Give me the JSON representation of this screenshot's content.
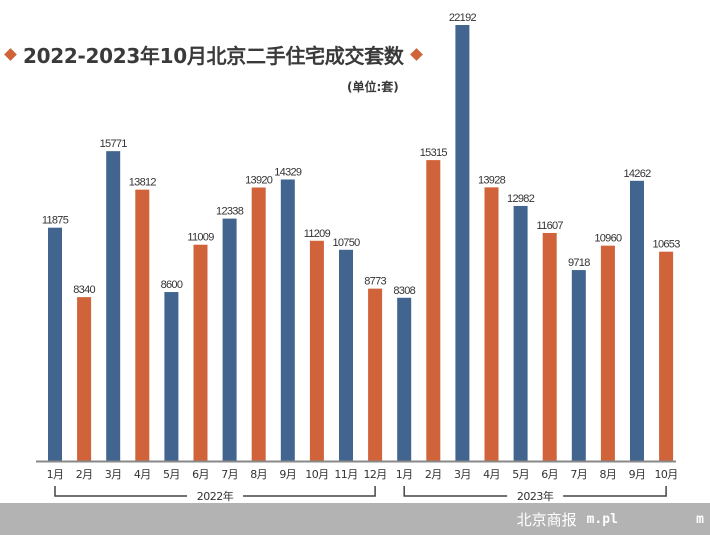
{
  "chart_data": {
    "type": "bar",
    "title": "2022-2023年10月北京二手住宅成交套数",
    "unit": "(单位:套)",
    "categories": [
      "1月",
      "2月",
      "3月",
      "4月",
      "5月",
      "6月",
      "7月",
      "8月",
      "9月",
      "10月",
      "11月",
      "12月",
      "1月",
      "2月",
      "3月",
      "4月",
      "5月",
      "6月",
      "7月",
      "8月",
      "9月",
      "10月"
    ],
    "groups": [
      {
        "label": "2022年",
        "start": 0,
        "end": 11
      },
      {
        "label": "2023年",
        "start": 12,
        "end": 21
      }
    ],
    "values": [
      11875,
      8340,
      15771,
      13812,
      8600,
      11009,
      12338,
      13920,
      14329,
      11209,
      10750,
      8773,
      8308,
      15315,
      22192,
      13928,
      12982,
      11607,
      9718,
      10960,
      14262,
      10653
    ],
    "colors": [
      "#41658f",
      "#d0633a"
    ],
    "ylim": [
      0,
      22192
    ],
    "grid": false
  },
  "watermark": {
    "site": "m.pl          m",
    "brand": "北京商报"
  }
}
